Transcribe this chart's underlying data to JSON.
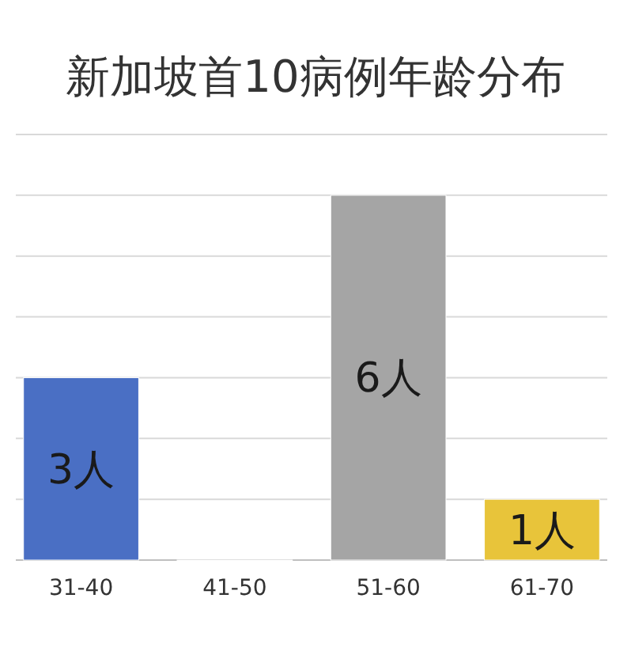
{
  "chart_data": {
    "type": "bar",
    "title": "新加坡首10病例年龄分布",
    "categories": [
      "31-40",
      "41-50",
      "51-60",
      "61-70"
    ],
    "values": [
      3,
      0,
      6,
      1
    ],
    "colors": [
      "#4a6fc4",
      "#c0702c",
      "#a5a5a5",
      "#e8c43a"
    ],
    "value_labels": [
      "3人",
      null,
      "6人",
      "1人"
    ],
    "ylim": [
      0,
      7
    ],
    "yticks": [
      {
        "value": 0,
        "label": null
      },
      {
        "value": 1,
        "label": null
      },
      {
        "value": 2,
        "label": null
      },
      {
        "value": 3,
        "label": null
      },
      {
        "value": 4,
        "label": null
      },
      {
        "value": 5,
        "label": null
      },
      {
        "value": 6,
        "label": null
      },
      {
        "value": 7,
        "label": null
      }
    ],
    "grid": "y",
    "tick_labels": "x"
  }
}
